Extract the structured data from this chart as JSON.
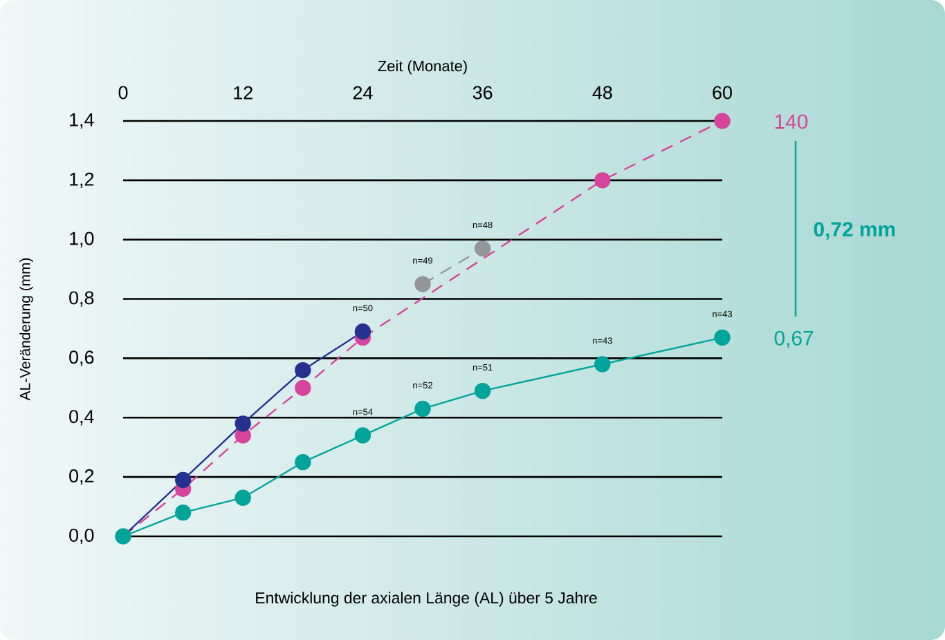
{
  "chart_data": {
    "type": "line",
    "xlabel": "Zeit (Monate)",
    "ylabel": "AL-Veränderung (mm)",
    "xlim": [
      0,
      60
    ],
    "xticks": [
      0,
      12,
      24,
      36,
      48,
      60
    ],
    "ylim": [
      0,
      1.4
    ],
    "yticks": [
      {
        "value": 0,
        "label": "0,0"
      },
      {
        "value": 0.2,
        "label": "0,2"
      },
      {
        "value": 0.4,
        "label": "0,4"
      },
      {
        "value": 0.6,
        "label": "0,6"
      },
      {
        "value": 0.8,
        "label": "0,8"
      },
      {
        "value": 1.0,
        "label": "1,0"
      },
      {
        "value": 1.2,
        "label": "1,2"
      },
      {
        "value": 1.4,
        "label": "1,4"
      }
    ],
    "grid": "y",
    "marker": "circle",
    "series": [
      {
        "color": "#00a49a",
        "line_style": "solid",
        "x": [
          0,
          6,
          12,
          18,
          24,
          30,
          36,
          48,
          60
        ],
        "values": [
          0,
          0.08,
          0.13,
          0.25,
          0.34,
          0.43,
          0.49,
          0.58,
          0.67
        ]
      },
      {
        "color": "#d6449b",
        "line_style": "dashed",
        "x": [
          0,
          6,
          12,
          18,
          24,
          30,
          48,
          60
        ],
        "values": [
          0,
          0.16,
          0.34,
          0.5,
          0.67,
          null,
          1.2,
          1.4
        ]
      },
      {
        "color": "#24318f",
        "line_style": "solid",
        "x": [
          0,
          6,
          12,
          18,
          24
        ],
        "values": [
          0,
          0.19,
          0.38,
          0.56,
          0.69
        ]
      },
      {
        "color": "#939598",
        "line_style": "dashed",
        "x": [
          30,
          36
        ],
        "values": [
          0.85,
          0.97
        ]
      }
    ],
    "annotations": [
      "Entwicklung der axialen Länge (AL) über 5 Jahre",
      "0,72 mm",
      "140",
      "0,67",
      {
        "text": "n=50",
        "x": 24,
        "y": 0.69
      },
      {
        "text": "n=49",
        "x": 30,
        "y": 0.85
      },
      {
        "text": "n=48",
        "x": 36,
        "y": 0.97
      },
      {
        "text": "n=54",
        "x": 24,
        "y": 0.34
      },
      {
        "text": "n=52",
        "x": 30,
        "y": 0.43
      },
      {
        "text": "n=51",
        "x": 36,
        "y": 0.49
      },
      {
        "text": "n=43",
        "x": 48,
        "y": 0.58
      },
      {
        "text": "n=43",
        "x": 60,
        "y": 0.67
      }
    ]
  }
}
